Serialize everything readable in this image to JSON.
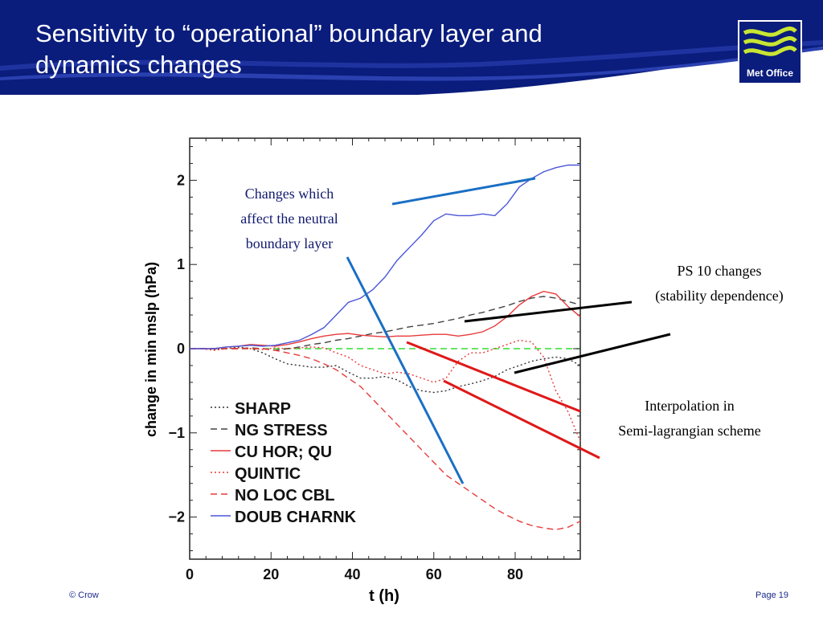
{
  "slide": {
    "title_line1": "Sensitivity to “operational” boundary layer and",
    "title_line2": "dynamics changes",
    "logo_text": "Met Office",
    "footer_left": "© Crow",
    "footer_right": "Page 19",
    "colors": {
      "header_blue": "#0a1c7c",
      "logo_wave": "#c8e632"
    }
  },
  "annotations": {
    "neutral": [
      "Changes which",
      "affect the neutral",
      "boundary layer"
    ],
    "ps10": [
      "PS 10 changes",
      "(stability dependence)"
    ],
    "interp": [
      "Interpolation in",
      "Semi-lagrangian scheme"
    ]
  },
  "chart_data": {
    "type": "line",
    "xlabel": "t (h)",
    "ylabel": "change in min mslp (hPa)",
    "xlim": [
      0,
      96
    ],
    "ylim": [
      -2.5,
      2.5
    ],
    "xticks": [
      0,
      20,
      40,
      60,
      80
    ],
    "yticks": [
      -2,
      -1,
      0,
      1,
      2
    ],
    "ytick_labels": [
      "−2",
      "−1",
      "0",
      "1",
      "2"
    ],
    "grid": false,
    "legend_position": "bottom-left",
    "zero_reference": {
      "y": 0,
      "color": "#33dd33",
      "style": "dashed"
    },
    "series": [
      {
        "name": "SHARP",
        "color": "#333333",
        "style": "dotted",
        "x": [
          0,
          3,
          6,
          9,
          12,
          15,
          18,
          21,
          24,
          27,
          30,
          33,
          36,
          39,
          42,
          45,
          48,
          51,
          54,
          57,
          60,
          63,
          66,
          69,
          72,
          75,
          78,
          81,
          84,
          87,
          90,
          93,
          96
        ],
        "y": [
          0,
          0,
          -0.01,
          0,
          0.02,
          0,
          -0.05,
          -0.12,
          -0.18,
          -0.2,
          -0.22,
          -0.22,
          -0.2,
          -0.28,
          -0.35,
          -0.35,
          -0.33,
          -0.37,
          -0.45,
          -0.5,
          -0.52,
          -0.5,
          -0.45,
          -0.42,
          -0.38,
          -0.33,
          -0.25,
          -0.2,
          -0.15,
          -0.12,
          -0.1,
          -0.12,
          -0.2
        ]
      },
      {
        "name": "NG STRESS",
        "color": "#444444",
        "style": "dashed",
        "x": [
          0,
          3,
          6,
          9,
          12,
          15,
          18,
          21,
          24,
          27,
          30,
          33,
          36,
          39,
          42,
          45,
          48,
          51,
          54,
          57,
          60,
          63,
          66,
          69,
          72,
          75,
          78,
          81,
          84,
          87,
          90,
          93,
          96
        ],
        "y": [
          0,
          0,
          0,
          0,
          0,
          0.01,
          0,
          -0.02,
          0,
          0.02,
          0.05,
          0.07,
          0.1,
          0.12,
          0.15,
          0.18,
          0.2,
          0.23,
          0.26,
          0.28,
          0.3,
          0.33,
          0.36,
          0.4,
          0.43,
          0.47,
          0.51,
          0.56,
          0.6,
          0.62,
          0.6,
          0.56,
          0.52
        ]
      },
      {
        "name": "CU HOR; QU",
        "color": "#e83a3a",
        "style": "solid",
        "x": [
          0,
          3,
          6,
          9,
          12,
          15,
          18,
          21,
          24,
          27,
          30,
          33,
          36,
          39,
          42,
          45,
          48,
          51,
          54,
          57,
          60,
          63,
          66,
          69,
          72,
          75,
          78,
          81,
          84,
          87,
          90,
          93,
          96
        ],
        "y": [
          0,
          0,
          0,
          0.02,
          0.03,
          0.05,
          0.04,
          0.03,
          0.05,
          0.08,
          0.12,
          0.15,
          0.17,
          0.18,
          0.16,
          0.15,
          0.14,
          0.15,
          0.15,
          0.16,
          0.17,
          0.17,
          0.15,
          0.17,
          0.2,
          0.27,
          0.38,
          0.52,
          0.62,
          0.68,
          0.65,
          0.5,
          0.38
        ]
      },
      {
        "name": "QUINTIC",
        "color": "#e83a3a",
        "style": "dotted",
        "x": [
          0,
          3,
          6,
          9,
          12,
          15,
          18,
          21,
          24,
          27,
          30,
          33,
          36,
          39,
          42,
          45,
          48,
          51,
          54,
          57,
          60,
          63,
          66,
          69,
          72,
          75,
          78,
          81,
          84,
          87,
          90,
          93,
          96
        ],
        "y": [
          0,
          0,
          -0.02,
          0,
          0.01,
          0,
          -0.01,
          0.01,
          0,
          0.01,
          0.02,
          0.01,
          -0.05,
          -0.1,
          -0.2,
          -0.25,
          -0.3,
          -0.28,
          -0.3,
          -0.35,
          -0.4,
          -0.35,
          -0.15,
          -0.05,
          -0.05,
          0,
          0.05,
          0.1,
          0.08,
          -0.1,
          -0.5,
          -0.75,
          -1.1
        ]
      },
      {
        "name": "NO LOC CBL",
        "color": "#e83a3a",
        "style": "dashed",
        "x": [
          0,
          3,
          6,
          9,
          12,
          15,
          18,
          21,
          24,
          27,
          30,
          33,
          36,
          39,
          42,
          45,
          48,
          51,
          54,
          57,
          60,
          63,
          66,
          69,
          72,
          75,
          78,
          81,
          84,
          87,
          90,
          93,
          96
        ],
        "y": [
          0,
          0,
          0,
          0,
          0,
          0,
          0,
          -0.02,
          -0.05,
          -0.08,
          -0.12,
          -0.18,
          -0.25,
          -0.35,
          -0.45,
          -0.6,
          -0.75,
          -0.9,
          -1.05,
          -1.2,
          -1.35,
          -1.5,
          -1.6,
          -1.7,
          -1.8,
          -1.9,
          -1.98,
          -2.05,
          -2.1,
          -2.13,
          -2.15,
          -2.12,
          -2.05
        ]
      },
      {
        "name": "DOUB CHARNK",
        "color": "#4a56d8",
        "style": "solid",
        "x": [
          0,
          3,
          6,
          9,
          12,
          15,
          18,
          21,
          24,
          27,
          30,
          33,
          36,
          39,
          42,
          45,
          48,
          51,
          54,
          57,
          60,
          63,
          66,
          69,
          72,
          75,
          78,
          81,
          84,
          87,
          90,
          93,
          96
        ],
        "y": [
          0,
          0,
          0,
          0.02,
          0.03,
          0.04,
          0.03,
          0.04,
          0.07,
          0.1,
          0.17,
          0.25,
          0.4,
          0.55,
          0.6,
          0.7,
          0.85,
          1.05,
          1.2,
          1.35,
          1.52,
          1.6,
          1.58,
          1.58,
          1.6,
          1.58,
          1.72,
          1.92,
          2.02,
          2.1,
          2.15,
          2.18,
          2.18
        ]
      }
    ]
  }
}
